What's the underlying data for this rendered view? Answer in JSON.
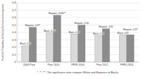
{
  "chart_data": {
    "type": "bar",
    "y_label": "Predicted Probability of Hearing Sermons on Immigration",
    "categories": [
      "2006 Pew",
      "Pew 2010",
      "PRRI 2010",
      "Pew 2012",
      "PRRI 2013"
    ],
    "series": [
      {
        "name": "Black",
        "color": "#d9d9d9",
        "values": [
          0.22,
          0.4,
          0.38,
          0.36,
          0.37
        ],
        "value_labels": [
          "Black, 0.22",
          "Black, 0.40*",
          "Black, 0.38",
          "Black, 0.36",
          "Black, 0.37"
        ]
      },
      {
        "name": "Hispanic",
        "color": "#8c8c8c",
        "values": [
          0.47,
          0.632,
          0.5,
          0.45,
          0.37
        ],
        "value_labels": [
          "Hispanic, 0.47*",
          "Hispanic, 0.632**",
          "Hispanic, 0.50",
          "Hispanic, 0.45",
          "Hispanic, 0.37"
        ]
      }
    ],
    "ylim": [
      0,
      0.8
    ],
    "yticks": [
      0,
      0.1,
      0.2,
      0.3,
      0.4,
      0.5,
      0.6,
      0.7,
      0.8
    ],
    "grid": true,
    "data_labels": true,
    "note": "*, **, ***: The significance tests compare Whites and Hispanics to Blacks."
  }
}
